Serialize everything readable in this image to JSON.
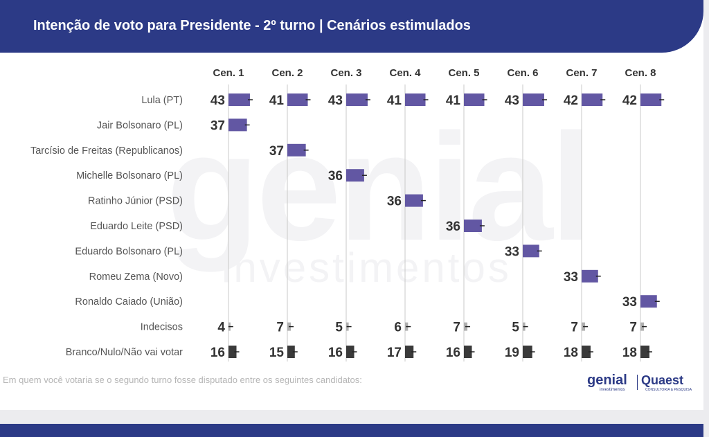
{
  "header": {
    "title": "Intenção de voto para Presidente - 2º turno | Cenários estimulados"
  },
  "watermark": {
    "brand": "genial",
    "sub": "investimentos"
  },
  "footnote": "Em quem você votaria se o segundo turno fosse disputado entre os seguintes candidatos:",
  "logos": {
    "genial": "genial",
    "genial_sub": "investimentos",
    "quaest": "Quaest",
    "quaest_sub": "CONSULTORIA & PESQUISA"
  },
  "colors": {
    "header_bg": "#2c3a86",
    "candidate_bar": "#6257a3",
    "undecided_bar": "#b0b0b0",
    "blank_bar": "#3a3a3a",
    "value_text": "#333333",
    "label_text": "#555555"
  },
  "chart_data": {
    "type": "bar",
    "title": "Intenção de voto para Presidente - 2º turno | Cenários estimulados",
    "scenarios": [
      "Cen. 1",
      "Cen. 2",
      "Cen. 3",
      "Cen. 4",
      "Cen. 5",
      "Cen. 6",
      "Cen. 7",
      "Cen. 8"
    ],
    "rows": [
      {
        "label": "Lula (PT)",
        "kind": "candidate",
        "values": [
          43,
          41,
          43,
          41,
          41,
          43,
          42,
          42
        ]
      },
      {
        "label": "Jair Bolsonaro (PL)",
        "kind": "candidate",
        "values": [
          37,
          null,
          null,
          null,
          null,
          null,
          null,
          null
        ]
      },
      {
        "label": "Tarcísio de Freitas (Republicanos)",
        "kind": "candidate",
        "values": [
          null,
          37,
          null,
          null,
          null,
          null,
          null,
          null
        ]
      },
      {
        "label": "Michelle Bolsonaro (PL)",
        "kind": "candidate",
        "values": [
          null,
          null,
          36,
          null,
          null,
          null,
          null,
          null
        ]
      },
      {
        "label": "Ratinho Júnior (PSD)",
        "kind": "candidate",
        "values": [
          null,
          null,
          null,
          36,
          null,
          null,
          null,
          null
        ]
      },
      {
        "label": "Eduardo Leite (PSD)",
        "kind": "candidate",
        "values": [
          null,
          null,
          null,
          null,
          36,
          null,
          null,
          null
        ]
      },
      {
        "label": "Eduardo Bolsonaro (PL)",
        "kind": "candidate",
        "values": [
          null,
          null,
          null,
          null,
          null,
          33,
          null,
          null
        ]
      },
      {
        "label": "Romeu Zema (Novo)",
        "kind": "candidate",
        "values": [
          null,
          null,
          null,
          null,
          null,
          null,
          33,
          null
        ]
      },
      {
        "label": "Ronaldo Caiado (União)",
        "kind": "candidate",
        "values": [
          null,
          null,
          null,
          null,
          null,
          null,
          null,
          33
        ]
      },
      {
        "label": "Indecisos",
        "kind": "undecided",
        "values": [
          4,
          7,
          5,
          6,
          7,
          5,
          7,
          7
        ]
      },
      {
        "label": "Branco/Nulo/Não vai votar",
        "kind": "blank",
        "values": [
          16,
          15,
          16,
          17,
          16,
          19,
          18,
          18
        ]
      }
    ],
    "unit": "%",
    "xlim": [
      0,
      100
    ]
  }
}
